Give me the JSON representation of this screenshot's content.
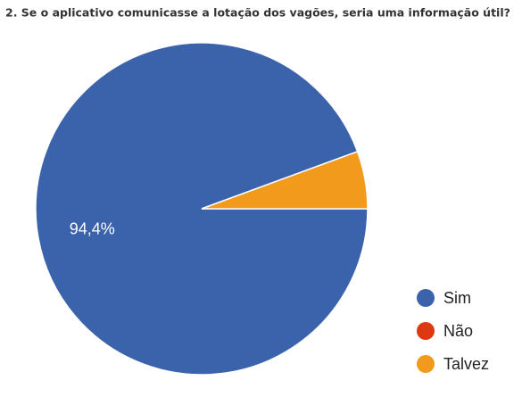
{
  "chart_data": {
    "type": "pie",
    "title": "2. Se o aplicativo comunicasse a lotação dos vagões, seria uma informação útil?",
    "categories": [
      "Sim",
      "Não",
      "Talvez"
    ],
    "values": [
      94.4,
      0,
      5.6
    ],
    "value_labels": [
      "94,4%",
      null,
      null
    ],
    "colors": [
      "#3b63ab",
      "#dc3912",
      "#f29a1c"
    ],
    "legend": "right"
  }
}
